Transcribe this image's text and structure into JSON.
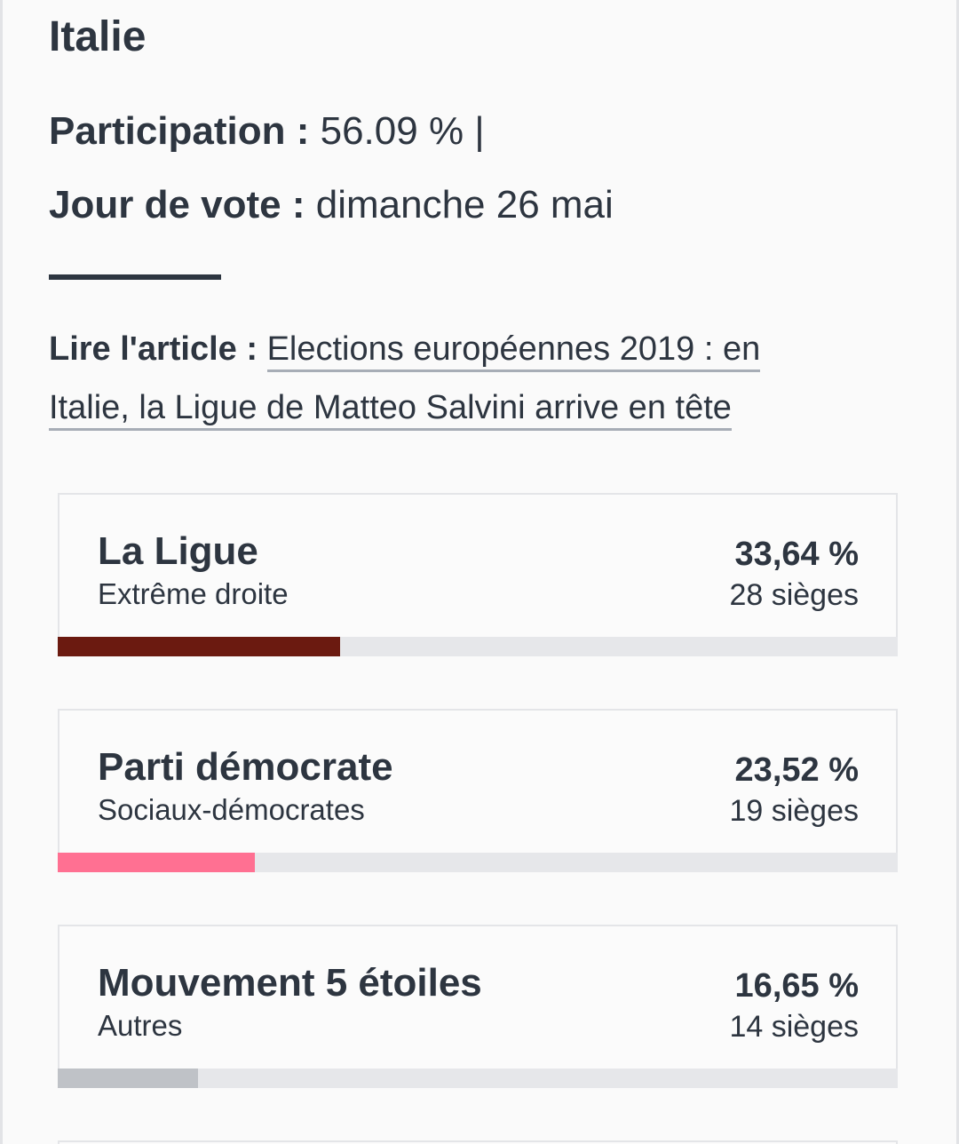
{
  "country": "Italie",
  "participation": {
    "label": "Participation :",
    "value": "56.09 % |"
  },
  "vote_day": {
    "label": "Jour de vote :",
    "value": "dimanche 26 mai"
  },
  "article": {
    "label": "Lire l'article :",
    "link_text": "Elections européennes 2019 : en Italie, la Ligue de Matteo Salvini arrive en tête"
  },
  "parties": [
    {
      "name": "La Ligue",
      "group": "Extrême droite",
      "percent": "33,64 %",
      "seats": "28 sièges",
      "share": 33.64,
      "color": "#6b1a10"
    },
    {
      "name": "Parti démocrate",
      "group": "Sociaux-démocrates",
      "percent": "23,52 %",
      "seats": "19 sièges",
      "share": 23.52,
      "color": "#ff7092"
    },
    {
      "name": "Mouvement 5 étoiles",
      "group": "Autres",
      "percent": "16,65 %",
      "seats": "14 sièges",
      "share": 16.65,
      "color": "#bfc2c7"
    }
  ]
}
